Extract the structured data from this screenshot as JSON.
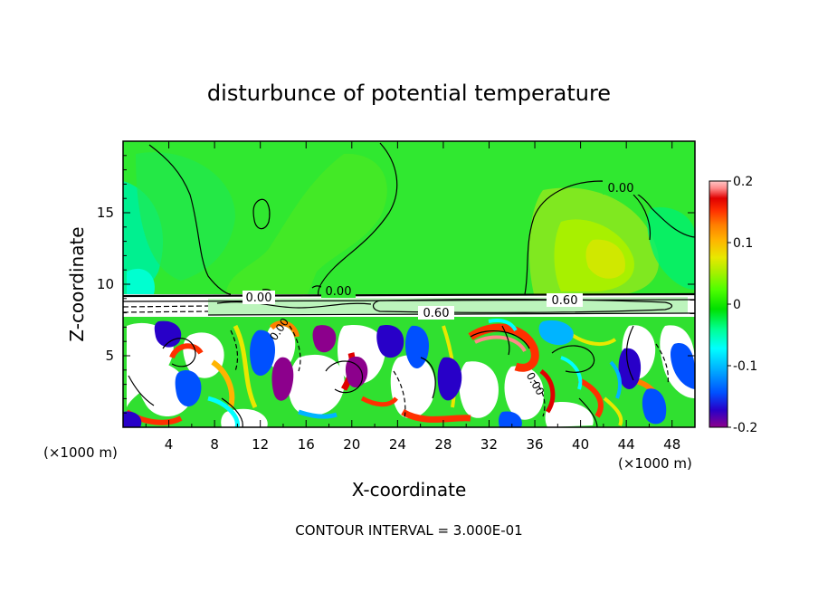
{
  "chart_data": {
    "type": "heatmap",
    "title": "disturbunce of potential temperature",
    "xlabel": "X-coordinate",
    "ylabel": "Z-coordinate",
    "x_unit": "(×1000 m)",
    "x_unit_right": "(×1000 m)",
    "xlim": [
      0,
      50
    ],
    "ylim": [
      0,
      20
    ],
    "x_ticks": [
      4,
      8,
      12,
      16,
      20,
      24,
      28,
      32,
      36,
      40,
      44,
      48
    ],
    "y_ticks": [
      5,
      10,
      15
    ],
    "colorbar": {
      "range": [
        -0.2,
        0.2
      ],
      "tick_labels": [
        "0.2",
        "0.1",
        "0",
        "-0.1",
        "-0.2"
      ],
      "tick_values": [
        0.2,
        0.1,
        0,
        -0.1,
        -0.2
      ],
      "colors": [
        "#8c008c",
        "#2800c8",
        "#0050ff",
        "#00b4ff",
        "#00ffff",
        "#00ff90",
        "#00e000",
        "#50ff00",
        "#a8f000",
        "#e8e800",
        "#ffb400",
        "#ff8000",
        "#ff3000",
        "#e00000",
        "#ff8888",
        "#ffc8c8"
      ]
    },
    "contour_labels": [
      "0.00",
      "0.00",
      "0.00",
      "0.00",
      "0.60",
      "0.60",
      "0.00",
      "0.00"
    ],
    "footer": "CONTOUR INTERVAL = 3.000E-01"
  }
}
